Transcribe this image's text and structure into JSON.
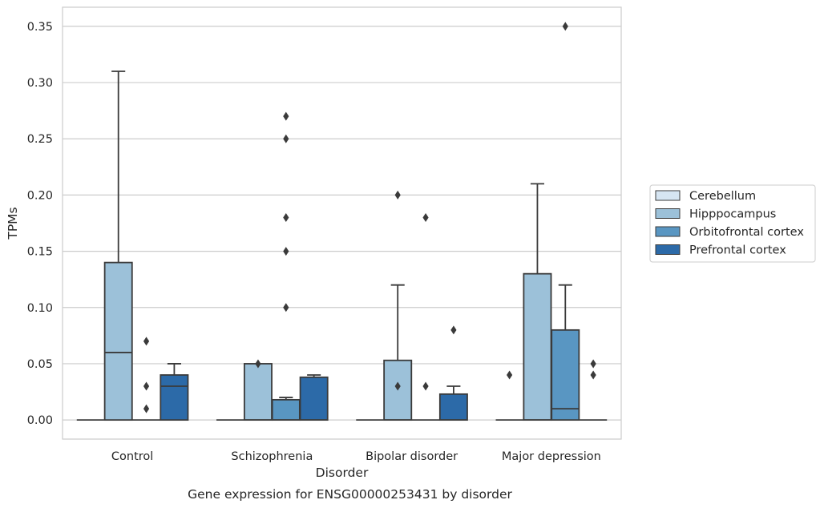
{
  "chart_data": {
    "type": "box",
    "title": "",
    "caption": "Gene expression for ENSG00000253431 by disorder",
    "xlabel": "Disorder",
    "ylabel": "TPMs",
    "ylim": [
      -0.017,
      0.367
    ],
    "yticks": [
      "0.00",
      "0.05",
      "0.10",
      "0.15",
      "0.20",
      "0.25",
      "0.30",
      "0.35"
    ],
    "ytick_values": [
      0,
      0.05,
      0.1,
      0.15,
      0.2,
      0.25,
      0.3,
      0.35
    ],
    "grid": "horizontal",
    "legend_position": "right",
    "categories": [
      "Control",
      "Schizophrenia",
      "Bipolar disorder",
      "Major depression"
    ],
    "series": [
      {
        "name": "Cerebellum",
        "color": "#d6e5f2",
        "boxes": [
          {
            "q1": 0,
            "median": 0,
            "q3": 0,
            "whislo": 0,
            "whishi": 0,
            "fliers": []
          },
          {
            "q1": 0,
            "median": 0,
            "q3": 0,
            "whislo": 0,
            "whishi": 0,
            "fliers": []
          },
          {
            "q1": 0,
            "median": 0,
            "q3": 0,
            "whislo": 0,
            "whishi": 0,
            "fliers": []
          },
          {
            "q1": 0,
            "median": 0,
            "q3": 0,
            "whislo": 0,
            "whishi": 0,
            "fliers": [
              0.04
            ]
          }
        ]
      },
      {
        "name": "Hipppocampus",
        "color": "#9cc1d9",
        "boxes": [
          {
            "q1": 0,
            "median": 0.06,
            "q3": 0.14,
            "whislo": 0,
            "whishi": 0.31,
            "fliers": []
          },
          {
            "q1": 0,
            "median": 0,
            "q3": 0.05,
            "whislo": 0,
            "whishi": 0.05,
            "fliers": [
              0.05
            ]
          },
          {
            "q1": 0,
            "median": 0,
            "q3": 0.053,
            "whislo": 0,
            "whishi": 0.12,
            "fliers": [
              0.03,
              0.2
            ]
          },
          {
            "q1": 0,
            "median": 0,
            "q3": 0.13,
            "whislo": 0,
            "whishi": 0.21,
            "fliers": []
          }
        ]
      },
      {
        "name": "Orbitofrontal cortex",
        "color": "#5996c2",
        "boxes": [
          {
            "q1": 0,
            "median": 0,
            "q3": 0,
            "whislo": 0,
            "whishi": 0,
            "fliers": [
              0.01,
              0.03,
              0.07
            ]
          },
          {
            "q1": 0,
            "median": 0,
            "q3": 0.018,
            "whislo": 0,
            "whishi": 0.02,
            "fliers": [
              0.1,
              0.15,
              0.18,
              0.25,
              0.27
            ]
          },
          {
            "q1": 0,
            "median": 0,
            "q3": 0,
            "whislo": 0,
            "whishi": 0,
            "fliers": [
              0.03,
              0.18
            ]
          },
          {
            "q1": 0,
            "median": 0.01,
            "q3": 0.08,
            "whislo": 0,
            "whishi": 0.12,
            "fliers": [
              0.35
            ]
          }
        ]
      },
      {
        "name": "Prefrontal cortex",
        "color": "#2c6aa8",
        "boxes": [
          {
            "q1": 0,
            "median": 0.03,
            "q3": 0.04,
            "whislo": 0,
            "whishi": 0.05,
            "fliers": []
          },
          {
            "q1": 0,
            "median": 0,
            "q3": 0.038,
            "whislo": 0,
            "whishi": 0.04,
            "fliers": []
          },
          {
            "q1": 0,
            "median": 0,
            "q3": 0.023,
            "whislo": 0,
            "whishi": 0.03,
            "fliers": [
              0.08
            ]
          },
          {
            "q1": 0,
            "median": 0,
            "q3": 0,
            "whislo": 0,
            "whishi": 0,
            "fliers": [
              0.04,
              0.05
            ]
          }
        ]
      }
    ]
  }
}
